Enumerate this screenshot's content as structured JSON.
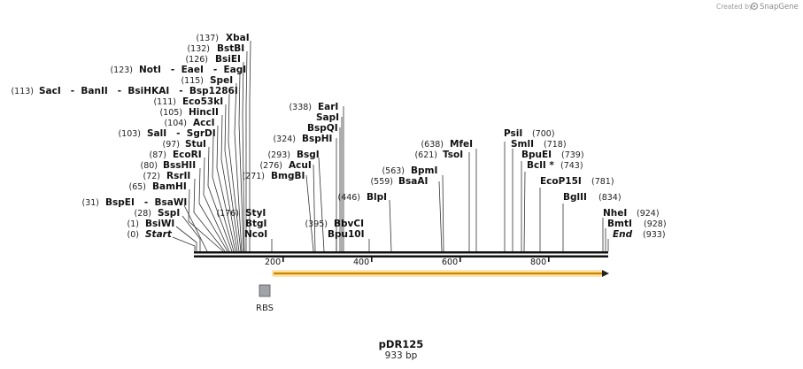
{
  "credit": {
    "text": "Created by",
    "brand": "SnapGene",
    "icon": "snapgene-logo-icon"
  },
  "plasmid": {
    "name": "pDR125",
    "length_label": "933 bp",
    "length_bp": 933
  },
  "ruler": {
    "ticks": [
      200,
      400,
      600,
      800
    ],
    "tick_labels": [
      "200",
      "400",
      "600",
      "800"
    ]
  },
  "features": [
    {
      "name": "RBS",
      "type": "ribosome-binding-site",
      "color": "#a0a4a8"
    },
    {
      "name": "orf",
      "type": "open-reading-frame",
      "color": "#f0a000",
      "start_bp": 176,
      "end_bp": 933
    }
  ],
  "sites": [
    {
      "name": "XbaI",
      "pos": "137"
    },
    {
      "name": "BstBI",
      "pos": "132"
    },
    {
      "name": "BsiEI",
      "pos": "126"
    },
    {
      "name": "NotI - EaeI - EagI",
      "pos": "123"
    },
    {
      "name": "SpeI",
      "pos": "115"
    },
    {
      "name": "SacI - BanII - BsiHKAI - Bsp1286I",
      "pos": "113"
    },
    {
      "name": "Eco53kI",
      "pos": "111"
    },
    {
      "name": "HincII",
      "pos": "105"
    },
    {
      "name": "AccI",
      "pos": "104"
    },
    {
      "name": "SalI - SgrDI",
      "pos": "103"
    },
    {
      "name": "StuI",
      "pos": "97"
    },
    {
      "name": "EcoRI",
      "pos": "87"
    },
    {
      "name": "BssHII",
      "pos": "80"
    },
    {
      "name": "RsrII",
      "pos": "72"
    },
    {
      "name": "BamHI",
      "pos": "65"
    },
    {
      "name": "BspEI - BsaWI",
      "pos": "31"
    },
    {
      "name": "SspI",
      "pos": "28"
    },
    {
      "name": "BsiWI",
      "pos": "1"
    },
    {
      "name": "Start",
      "pos": "0"
    },
    {
      "name": "StyI",
      "pos": "176"
    },
    {
      "name": "BtgI",
      "pos": ""
    },
    {
      "name": "NcoI",
      "pos": ""
    },
    {
      "name": "BmgBI",
      "pos": "271"
    },
    {
      "name": "AcuI",
      "pos": "276"
    },
    {
      "name": "BsgI",
      "pos": "293"
    },
    {
      "name": "BspHI",
      "pos": "324"
    },
    {
      "name": "BspQI",
      "pos": ""
    },
    {
      "name": "SapI",
      "pos": ""
    },
    {
      "name": "EarI",
      "pos": "338"
    },
    {
      "name": "BbvCI",
      "pos": "395"
    },
    {
      "name": "Bpu10I",
      "pos": ""
    },
    {
      "name": "BlpI",
      "pos": "446"
    },
    {
      "name": "BsaAI",
      "pos": "559"
    },
    {
      "name": "BpmI",
      "pos": "563"
    },
    {
      "name": "TsoI",
      "pos": "621"
    },
    {
      "name": "MfeI",
      "pos": "638"
    },
    {
      "name": "PsiI",
      "pos": "700"
    },
    {
      "name": "SmlI",
      "pos": "718"
    },
    {
      "name": "BpuEI",
      "pos": "739"
    },
    {
      "name": "BclI *",
      "pos": "743"
    },
    {
      "name": "EcoP15I",
      "pos": "781"
    },
    {
      "name": "BglII",
      "pos": "834"
    },
    {
      "name": "NheI",
      "pos": "924"
    },
    {
      "name": "BmtI",
      "pos": "928"
    },
    {
      "name": "End",
      "pos": "933"
    }
  ]
}
